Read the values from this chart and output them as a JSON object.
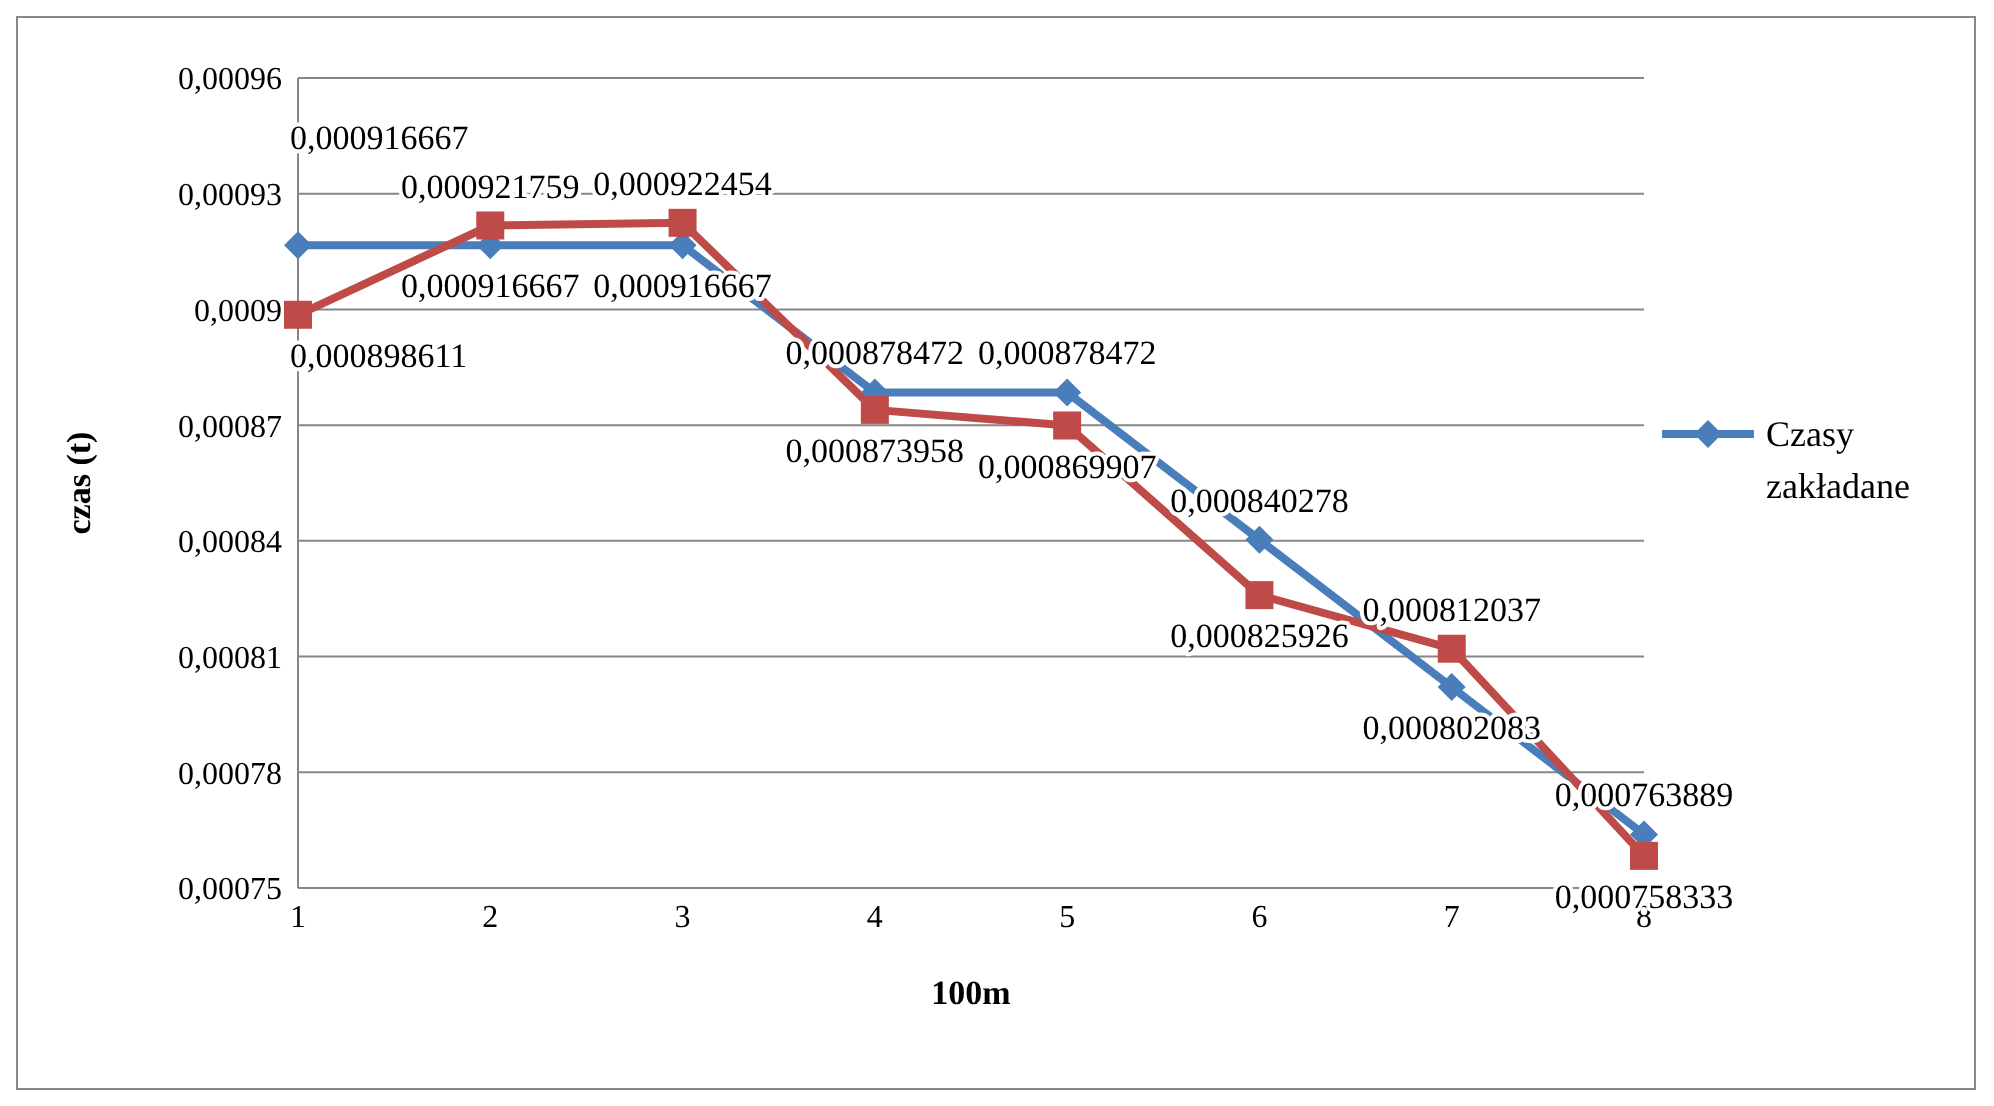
{
  "chart_data": {
    "type": "line",
    "xlabel": "100m",
    "ylabel": "czas (t)",
    "categories": [
      "1",
      "2",
      "3",
      "4",
      "5",
      "6",
      "7",
      "8"
    ],
    "series": [
      {
        "name": "Czasy zakładane",
        "color": "#4a7ebb",
        "marker": "diamond",
        "values": [
          0.000916667,
          0.000916667,
          0.000916667,
          0.000878472,
          0.000878472,
          0.000840278,
          0.000802083,
          0.000763889
        ],
        "value_labels": [
          "0,000916667",
          "0,000916667",
          "0,000916667",
          "0,000878472",
          "0,000878472",
          "0,000840278",
          "0,000802083",
          "0,000763889"
        ]
      },
      {
        "color": "#be4b48",
        "marker": "square",
        "values": [
          0.000898611,
          0.000921759,
          0.000922454,
          0.000873958,
          0.000869907,
          0.000825926,
          0.000812037,
          0.000758333
        ],
        "value_labels": [
          "0,000898611",
          "0,000921759",
          "0,000922454",
          "0,000873958",
          "0,000869907",
          "0,000825926",
          "0,000812037",
          "0,000758333"
        ]
      }
    ],
    "ylim": [
      0.00075,
      0.00096
    ],
    "yticks": [
      {
        "value": 0.00075,
        "label": "0,00075"
      },
      {
        "value": 0.00078,
        "label": "0,00078"
      },
      {
        "value": 0.00081,
        "label": "0,00081"
      },
      {
        "value": 0.00084,
        "label": "0,00084"
      },
      {
        "value": 0.00087,
        "label": "0,00087"
      },
      {
        "value": 0.0009,
        "label": "0,0009"
      },
      {
        "value": 0.00093,
        "label": "0,00093"
      },
      {
        "value": 0.00096,
        "label": "0,00096"
      }
    ],
    "grid": "y",
    "legend": "right"
  }
}
